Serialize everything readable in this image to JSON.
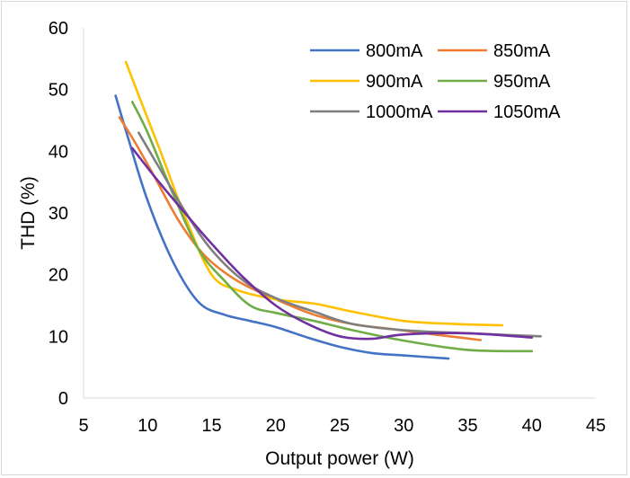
{
  "chart_data": {
    "type": "line",
    "title": "",
    "xlabel": "Output power (W)",
    "ylabel": "THD (%)",
    "xlim": [
      5,
      45
    ],
    "ylim": [
      0,
      60
    ],
    "x_ticks": [
      "5",
      "10",
      "15",
      "20",
      "25",
      "30",
      "35",
      "40",
      "45"
    ],
    "y_ticks": [
      "0",
      "10",
      "20",
      "30",
      "40",
      "50",
      "60"
    ],
    "grid": false,
    "legend_position": "top-right",
    "series": [
      {
        "name": "800mA",
        "color": "#4472C4",
        "x": [
          7.5,
          8.5,
          10,
          12,
          14,
          16,
          18,
          20,
          22.5,
          25,
          27.5,
          30,
          33.5
        ],
        "y": [
          49,
          42,
          32,
          22,
          15.5,
          13.5,
          12.5,
          11.5,
          9.8,
          8.3,
          7.3,
          6.9,
          6.4
        ]
      },
      {
        "name": "850mA",
        "color": "#ED7D31",
        "x": [
          7.8,
          9,
          10.5,
          12.5,
          14.5,
          17,
          20,
          23,
          26,
          29,
          32,
          36
        ],
        "y": [
          45.5,
          41.5,
          36,
          28.5,
          23,
          19,
          16,
          13.5,
          12,
          11.2,
          10.4,
          9.4
        ]
      },
      {
        "name": "900mA",
        "color": "#FFC000",
        "x": [
          8.3,
          9.5,
          11,
          13,
          15,
          17,
          20,
          23,
          26,
          30,
          34,
          37.7
        ],
        "y": [
          54.5,
          48,
          40,
          29,
          20,
          17.5,
          16,
          15.3,
          14,
          12.5,
          12,
          11.8
        ]
      },
      {
        "name": "950mA",
        "color": "#70AD47",
        "x": [
          8.8,
          10,
          12,
          14,
          16,
          18,
          20,
          23,
          26,
          30,
          35,
          40
        ],
        "y": [
          48,
          43,
          33,
          24,
          19,
          15,
          13.8,
          12.5,
          11,
          9.3,
          7.8,
          7.6
        ]
      },
      {
        "name": "1000mA",
        "color": "#7F7F7F",
        "x": [
          9.3,
          11,
          13,
          15,
          17.5,
          20,
          23,
          26,
          30,
          35,
          40.7
        ],
        "y": [
          43,
          37,
          30,
          24,
          19,
          16.2,
          14,
          12,
          11,
          10.5,
          10
        ]
      },
      {
        "name": "1050mA",
        "color": "#7030A0",
        "x": [
          8.8,
          10.5,
          12.5,
          15,
          17.5,
          20,
          22.5,
          25,
          27.5,
          30,
          35,
          40
        ],
        "y": [
          40.5,
          36,
          31,
          25,
          19.5,
          15,
          12,
          10,
          9.6,
          10.3,
          10.5,
          9.8
        ]
      }
    ]
  }
}
